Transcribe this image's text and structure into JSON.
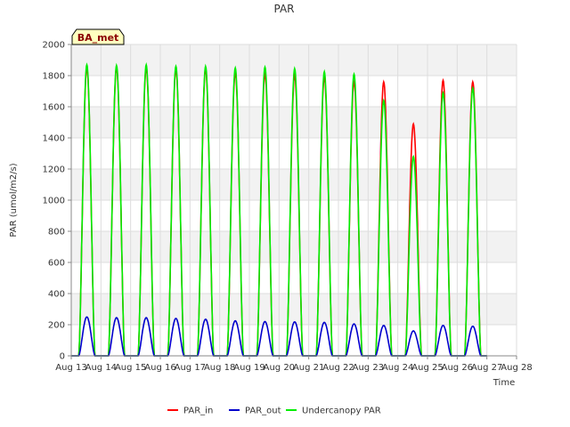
{
  "chart_data": {
    "type": "line",
    "title": "PAR",
    "xlabel": "Time",
    "ylabel": "PAR (umol/m2/s)",
    "badge": "BA_met",
    "ylim": [
      0,
      2000
    ],
    "yticks": [
      0,
      200,
      400,
      600,
      800,
      1000,
      1200,
      1400,
      1600,
      1800,
      2000
    ],
    "xlim": [
      "2023-08-13",
      "2023-08-28"
    ],
    "xticks": [
      "Aug 13",
      "Aug 14",
      "Aug 15",
      "Aug 16",
      "Aug 17",
      "Aug 18",
      "Aug 19",
      "Aug 20",
      "Aug 21",
      "Aug 22",
      "Aug 23",
      "Aug 24",
      "Aug 25",
      "Aug 26",
      "Aug 27",
      "Aug 28"
    ],
    "grid": true,
    "legend_position": "bottom-center",
    "series": [
      {
        "name": "PAR_in",
        "color": "#ff0000",
        "daily_peaks": [
          {
            "day": "2023-08-13",
            "peak": 1850
          },
          {
            "day": "2023-08-14",
            "peak": 1850
          },
          {
            "day": "2023-08-15",
            "peak": 1850
          },
          {
            "day": "2023-08-16",
            "peak": 1840
          },
          {
            "day": "2023-08-17",
            "peak": 1840
          },
          {
            "day": "2023-08-18",
            "peak": 1820
          },
          {
            "day": "2023-08-19",
            "peak": 1810
          },
          {
            "day": "2023-08-20",
            "peak": 1800
          },
          {
            "day": "2023-08-21",
            "peak": 1790
          },
          {
            "day": "2023-08-22",
            "peak": 1760
          },
          {
            "day": "2023-08-23",
            "peak": 1760
          },
          {
            "day": "2023-08-24",
            "peak": 1490
          },
          {
            "day": "2023-08-25",
            "peak": 1770
          },
          {
            "day": "2023-08-26",
            "peak": 1760
          }
        ]
      },
      {
        "name": "PAR_out",
        "color": "#0000cc",
        "daily_peaks": [
          {
            "day": "2023-08-13",
            "peak": 250
          },
          {
            "day": "2023-08-14",
            "peak": 245
          },
          {
            "day": "2023-08-15",
            "peak": 245
          },
          {
            "day": "2023-08-16",
            "peak": 240
          },
          {
            "day": "2023-08-17",
            "peak": 235
          },
          {
            "day": "2023-08-18",
            "peak": 225
          },
          {
            "day": "2023-08-19",
            "peak": 220
          },
          {
            "day": "2023-08-20",
            "peak": 218
          },
          {
            "day": "2023-08-21",
            "peak": 215
          },
          {
            "day": "2023-08-22",
            "peak": 205
          },
          {
            "day": "2023-08-23",
            "peak": 195
          },
          {
            "day": "2023-08-24",
            "peak": 160
          },
          {
            "day": "2023-08-25",
            "peak": 195
          },
          {
            "day": "2023-08-26",
            "peak": 190
          }
        ]
      },
      {
        "name": "Undercanopy PAR",
        "color": "#00ee00",
        "daily_peaks": [
          {
            "day": "2023-08-13",
            "peak": 1870
          },
          {
            "day": "2023-08-14",
            "peak": 1865
          },
          {
            "day": "2023-08-15",
            "peak": 1870
          },
          {
            "day": "2023-08-16",
            "peak": 1860
          },
          {
            "day": "2023-08-17",
            "peak": 1860
          },
          {
            "day": "2023-08-18",
            "peak": 1850
          },
          {
            "day": "2023-08-19",
            "peak": 1855
          },
          {
            "day": "2023-08-20",
            "peak": 1845
          },
          {
            "day": "2023-08-21",
            "peak": 1825
          },
          {
            "day": "2023-08-22",
            "peak": 1810
          },
          {
            "day": "2023-08-23",
            "peak": 1640
          },
          {
            "day": "2023-08-24",
            "peak": 1280
          },
          {
            "day": "2023-08-25",
            "peak": 1690
          },
          {
            "day": "2023-08-26",
            "peak": 1720
          }
        ]
      }
    ]
  }
}
